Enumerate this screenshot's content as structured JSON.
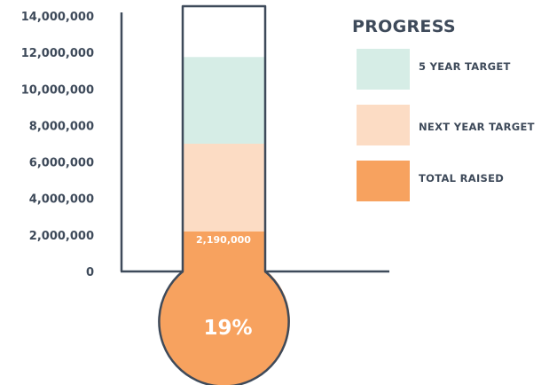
{
  "chart_data": {
    "type": "thermometer",
    "legend_title": "PROGRESS",
    "ylim": [
      0,
      14000000
    ],
    "y_ticks": [
      {
        "value": 0,
        "label": "0"
      },
      {
        "value": 2000000,
        "label": "2,000,000"
      },
      {
        "value": 4000000,
        "label": "4,000,000"
      },
      {
        "value": 6000000,
        "label": "6,000,000"
      },
      {
        "value": 8000000,
        "label": "8,000,000"
      },
      {
        "value": 10000000,
        "label": "10,000,000"
      },
      {
        "value": 12000000,
        "label": "12,000,000"
      },
      {
        "value": 14000000,
        "label": "14,000,000"
      }
    ],
    "series": [
      {
        "name": "5 YEAR TARGET",
        "value": 11750000,
        "color": "#d6ede6"
      },
      {
        "name": "NEXT YEAR TARGET",
        "value": 7000000,
        "color": "#fcdcc4"
      },
      {
        "name": "TOTAL RAISED",
        "value": 2190000,
        "color": "#f7a25f"
      }
    ],
    "value_label": "2,190,000",
    "percent_label": "19%",
    "outline_color": "#3e4a5a"
  }
}
